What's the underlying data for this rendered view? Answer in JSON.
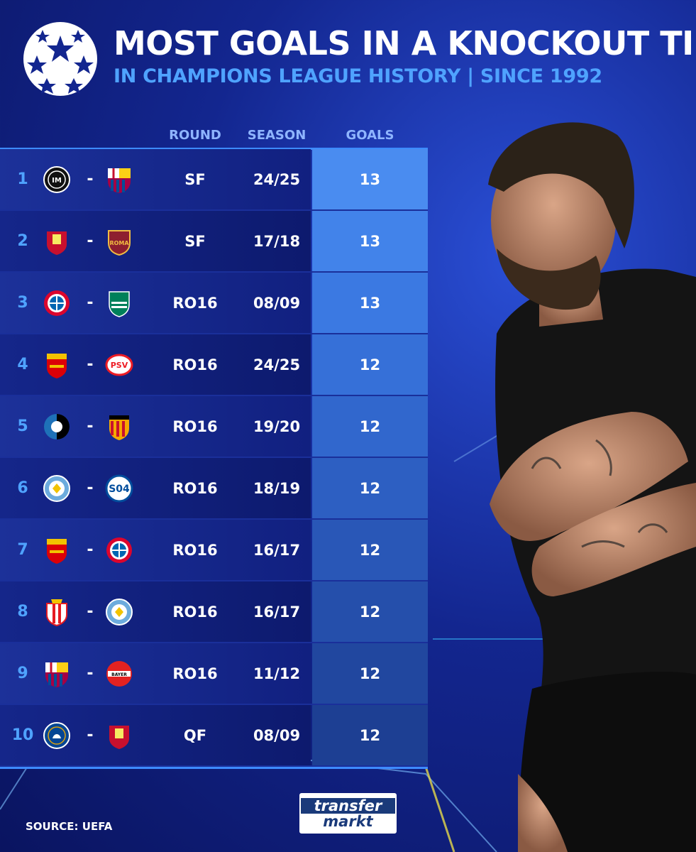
{
  "header": {
    "title": "MOST GOALS IN A KNOCKOUT TIE",
    "subtitle": "IN CHAMPIONS LEAGUE HISTORY | SINCE 1992"
  },
  "columns": {
    "round": "ROUND",
    "season": "SEASON",
    "goals": "GOALS"
  },
  "rows": [
    {
      "rank": "1",
      "team1": "inter-crest",
      "team2": "barcelona-crest",
      "round": "SF",
      "season": "24/25",
      "goals": "13"
    },
    {
      "rank": "2",
      "team1": "liverpool-crest",
      "team2": "roma-crest",
      "round": "SF",
      "season": "17/18",
      "goals": "13"
    },
    {
      "rank": "3",
      "team1": "bayern-crest",
      "team2": "sporting-crest",
      "round": "RO16",
      "season": "08/09",
      "goals": "13"
    },
    {
      "rank": "4",
      "team1": "arsenal-crest",
      "team2": "psv-crest",
      "round": "RO16",
      "season": "24/25",
      "goals": "12"
    },
    {
      "rank": "5",
      "team1": "atalanta-crest",
      "team2": "valencia-crest",
      "round": "RO16",
      "season": "19/20",
      "goals": "12"
    },
    {
      "rank": "6",
      "team1": "man-city-crest",
      "team2": "schalke-crest",
      "round": "RO16",
      "season": "18/19",
      "goals": "12"
    },
    {
      "rank": "7",
      "team1": "arsenal-crest",
      "team2": "bayern-crest",
      "round": "RO16",
      "season": "16/17",
      "goals": "12"
    },
    {
      "rank": "8",
      "team1": "monaco-crest",
      "team2": "man-city-crest",
      "round": "RO16",
      "season": "16/17",
      "goals": "12"
    },
    {
      "rank": "9",
      "team1": "barcelona-crest",
      "team2": "leverkusen-crest",
      "round": "RO16",
      "season": "11/12",
      "goals": "12"
    },
    {
      "rank": "10",
      "team1": "chelsea-crest",
      "team2": "liverpool-crest",
      "round": "QF",
      "season": "08/09",
      "goals": "12"
    }
  ],
  "dash": "-",
  "footer": {
    "source": "SOURCE: UEFA",
    "brand_top": "transfer",
    "brand_bottom": "markt"
  },
  "colors": {
    "accent_blue": "#4fa3ff",
    "background": "#13268f",
    "goal_shades": [
      "#4a8cf0",
      "#4283ea",
      "#3b79e2",
      "#3670d8",
      "#3167cd",
      "#2d5fc2",
      "#2957b7",
      "#254fab",
      "#21479f",
      "#1d3f93"
    ]
  }
}
